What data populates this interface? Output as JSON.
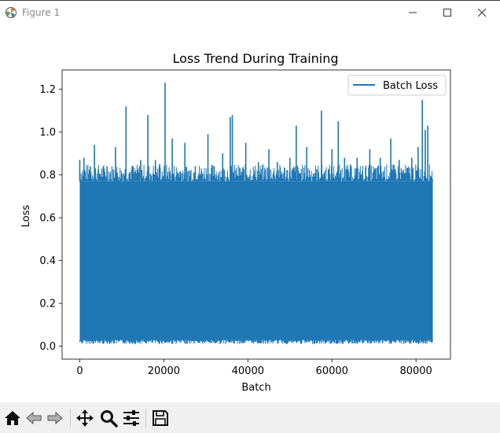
{
  "window": {
    "title": "Figure 1",
    "controls": [
      "minimize",
      "maximize",
      "close"
    ]
  },
  "chart_data": {
    "type": "line",
    "title": "Loss Trend During Training",
    "xlabel": "Batch",
    "ylabel": "Loss",
    "xlim": [
      -4200,
      88200
    ],
    "ylim": [
      -0.06,
      1.29
    ],
    "x_ticks": [
      0,
      20000,
      40000,
      60000,
      80000
    ],
    "x_tick_labels": [
      "0",
      "20000",
      "40000",
      "60000",
      "80000"
    ],
    "y_ticks": [
      0.0,
      0.2,
      0.4,
      0.6,
      0.8,
      1.0,
      1.2
    ],
    "y_tick_labels": [
      "0.0",
      "0.2",
      "0.4",
      "0.6",
      "0.8",
      "1.0",
      "1.2"
    ],
    "grid": false,
    "legend": {
      "placement": "top-right",
      "entries": [
        "Batch Loss"
      ]
    },
    "series": [
      {
        "name": "Batch Loss",
        "color": "#1f77b4",
        "x_range": [
          0,
          84000
        ],
        "band_low": 0.03,
        "band_high": 0.77,
        "spikes": [
          {
            "x": 0,
            "y": 0.87
          },
          {
            "x": 1000,
            "y": 0.88
          },
          {
            "x": 2500,
            "y": 0.84
          },
          {
            "x": 3500,
            "y": 0.94
          },
          {
            "x": 6500,
            "y": 0.84
          },
          {
            "x": 8500,
            "y": 0.93
          },
          {
            "x": 11000,
            "y": 1.12
          },
          {
            "x": 12500,
            "y": 0.84
          },
          {
            "x": 14500,
            "y": 0.87
          },
          {
            "x": 16200,
            "y": 1.08
          },
          {
            "x": 18000,
            "y": 0.87
          },
          {
            "x": 19000,
            "y": 0.85
          },
          {
            "x": 20300,
            "y": 1.23
          },
          {
            "x": 22000,
            "y": 0.97
          },
          {
            "x": 25000,
            "y": 0.95
          },
          {
            "x": 27500,
            "y": 0.84
          },
          {
            "x": 30500,
            "y": 0.99
          },
          {
            "x": 34000,
            "y": 0.9
          },
          {
            "x": 35800,
            "y": 1.07
          },
          {
            "x": 36300,
            "y": 1.08
          },
          {
            "x": 39500,
            "y": 0.95
          },
          {
            "x": 42500,
            "y": 0.86
          },
          {
            "x": 45000,
            "y": 0.92
          },
          {
            "x": 47000,
            "y": 0.86
          },
          {
            "x": 50000,
            "y": 0.88
          },
          {
            "x": 51500,
            "y": 1.03
          },
          {
            "x": 54000,
            "y": 0.93
          },
          {
            "x": 57500,
            "y": 1.1
          },
          {
            "x": 60000,
            "y": 0.92
          },
          {
            "x": 61500,
            "y": 1.05
          },
          {
            "x": 63000,
            "y": 0.88
          },
          {
            "x": 66000,
            "y": 0.88
          },
          {
            "x": 69000,
            "y": 0.92
          },
          {
            "x": 71500,
            "y": 0.88
          },
          {
            "x": 74000,
            "y": 0.97
          },
          {
            "x": 76000,
            "y": 0.87
          },
          {
            "x": 79000,
            "y": 0.88
          },
          {
            "x": 80500,
            "y": 0.93
          },
          {
            "x": 81500,
            "y": 1.15
          },
          {
            "x": 82200,
            "y": 1.01
          },
          {
            "x": 82800,
            "y": 1.03
          },
          {
            "x": 83800,
            "y": 0.78
          }
        ]
      }
    ]
  },
  "toolbar": {
    "buttons": [
      {
        "id": "home",
        "icon": "home-icon"
      },
      {
        "id": "back",
        "icon": "back-arrow-icon"
      },
      {
        "id": "forward",
        "icon": "forward-arrow-icon"
      },
      {
        "id": "pan",
        "icon": "pan-move-icon"
      },
      {
        "id": "zoom",
        "icon": "zoom-magnifier-icon"
      },
      {
        "id": "configure",
        "icon": "configure-subplots-icon"
      },
      {
        "id": "save",
        "icon": "save-floppy-icon"
      }
    ]
  }
}
